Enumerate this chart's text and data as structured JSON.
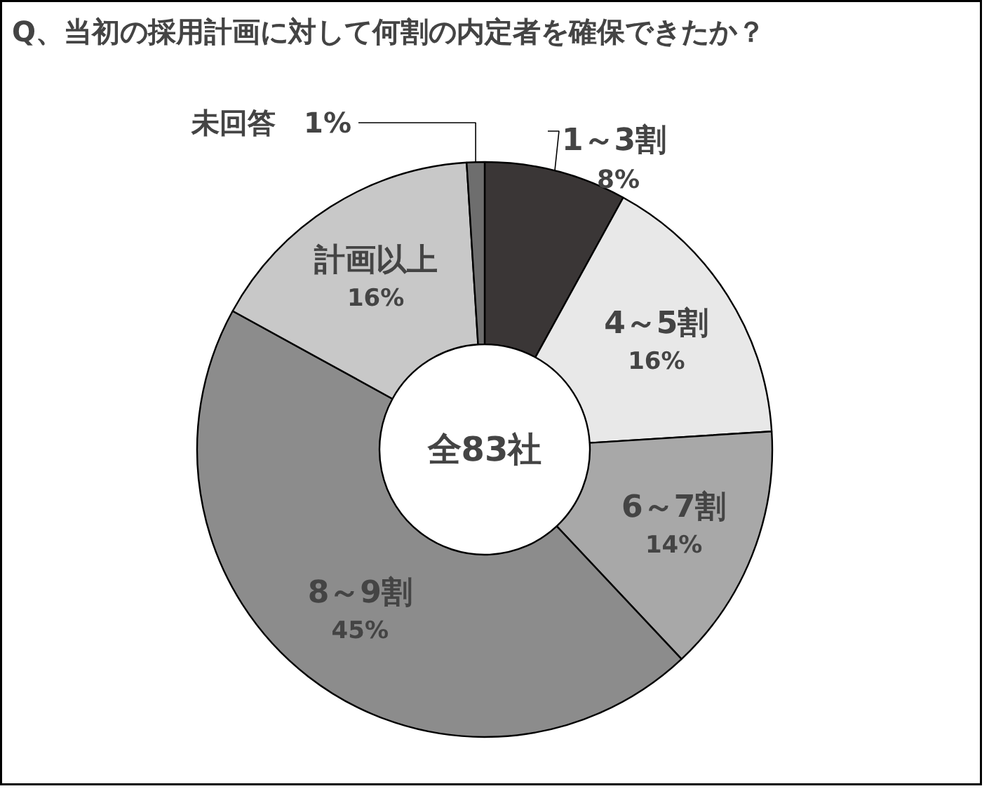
{
  "chart_data": {
    "type": "donut",
    "title": "Q、当初の採用計画に対して何割の内定者を確保できたか？",
    "categories": [
      "1～3割",
      "4～5割",
      "6～7割",
      "8～9割",
      "計画以上",
      "未回答"
    ],
    "values": [
      8,
      16,
      14,
      45,
      16,
      1
    ],
    "value_labels": [
      "8%",
      "16%",
      "14%",
      "45%",
      "16%",
      "1%"
    ],
    "colors": [
      "#3a3636",
      "#e8e8e8",
      "#a8a8a8",
      "#8c8c8c",
      "#c8c8c8",
      "#6e6e6e"
    ],
    "annotations": [
      "全83社"
    ]
  }
}
